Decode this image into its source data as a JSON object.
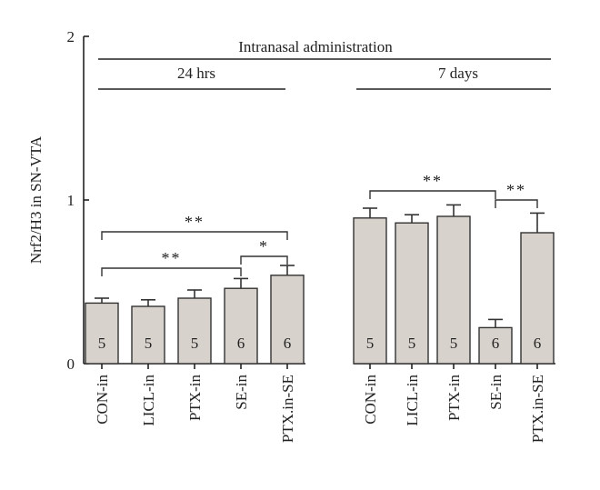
{
  "chart_data": {
    "type": "bar",
    "ylabel": "Nrf2/H3 in SN-VTA",
    "ylim": [
      0,
      2
    ],
    "yticks": [
      "0",
      "1",
      "2"
    ],
    "header": "Intranasal administration",
    "groups": [
      {
        "title": "24 hrs",
        "categories": [
          "CON-in",
          "LICL-in",
          "PTX-in",
          "SE-in",
          "PTX.in-SE"
        ],
        "values": [
          0.37,
          0.35,
          0.4,
          0.46,
          0.54
        ],
        "errors": [
          0.03,
          0.04,
          0.05,
          0.06,
          0.06
        ],
        "n": [
          "5",
          "5",
          "5",
          "6",
          "6"
        ],
        "significance": [
          {
            "from": 0,
            "to": 4,
            "label": "**"
          },
          {
            "from": 0,
            "to": 3,
            "label": "**"
          },
          {
            "from": 3,
            "to": 4,
            "label": "*"
          }
        ]
      },
      {
        "title": "7 days",
        "categories": [
          "CON-in",
          "LICL-in",
          "PTX-in",
          "SE-in",
          "PTX.in-SE"
        ],
        "values": [
          0.89,
          0.86,
          0.9,
          0.22,
          0.8
        ],
        "errors": [
          0.06,
          0.05,
          0.07,
          0.05,
          0.12
        ],
        "n": [
          "5",
          "5",
          "5",
          "6",
          "6"
        ],
        "significance": [
          {
            "from": 0,
            "to": 3,
            "label": "**"
          },
          {
            "from": 3,
            "to": 4,
            "label": "**"
          }
        ]
      }
    ]
  }
}
